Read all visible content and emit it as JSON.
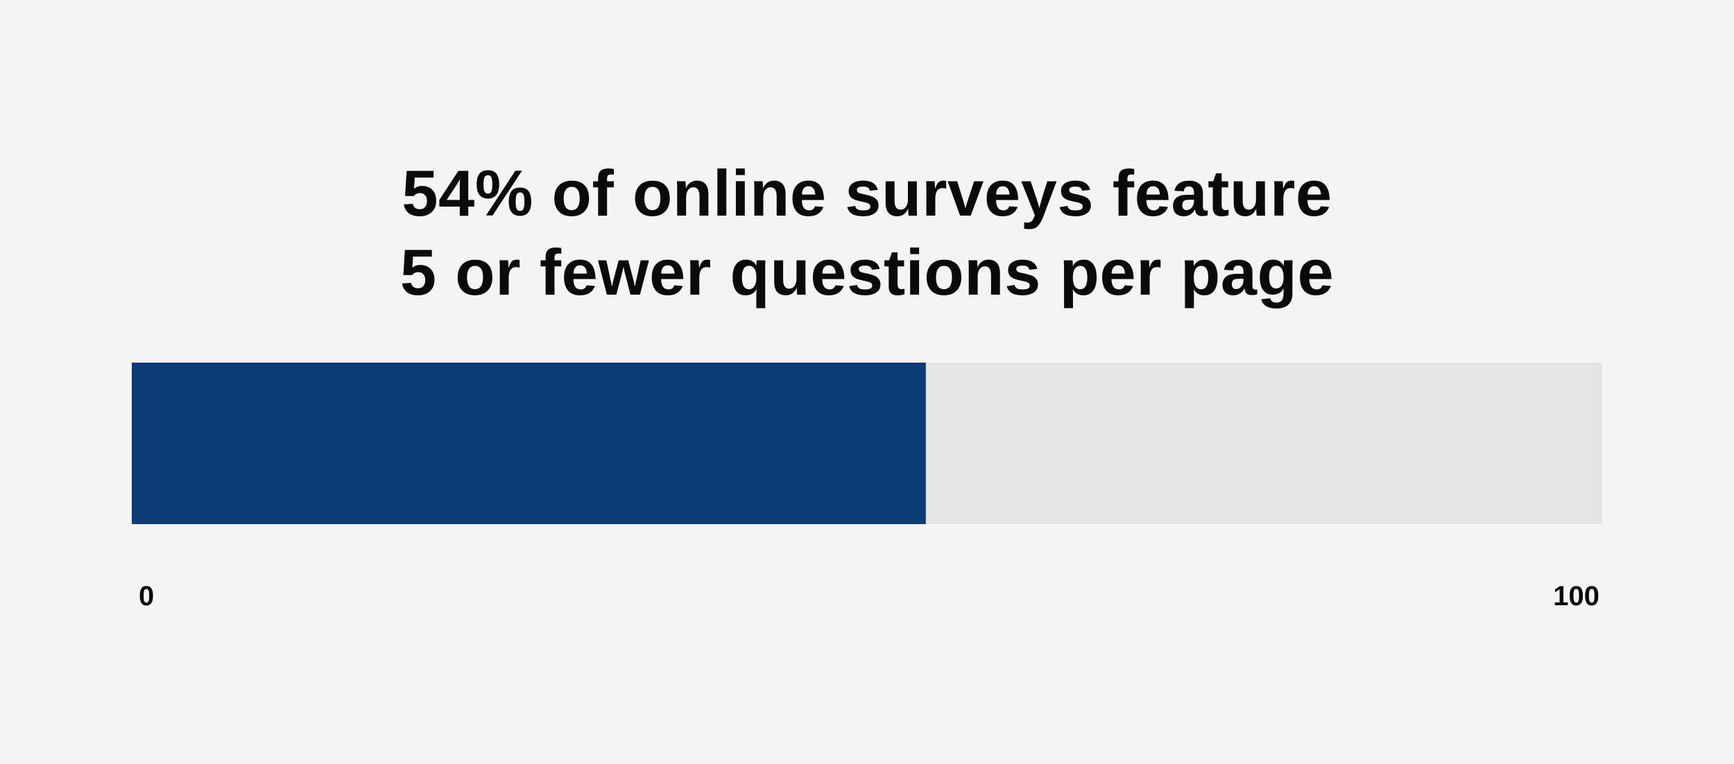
{
  "chart_data": {
    "type": "bar",
    "orientation": "horizontal",
    "title_lines": [
      "54% of online surveys feature",
      "5 or fewer questions per page"
    ],
    "categories": [
      ""
    ],
    "values": [
      54
    ],
    "xlim": [
      0,
      100
    ],
    "tick_labels": [
      "0",
      "100"
    ],
    "grid": false,
    "colors": {
      "fill": "#0c3c78",
      "track": "#e4e4e4",
      "background": "#f4f4f4",
      "text": "#0a0a0a"
    }
  }
}
